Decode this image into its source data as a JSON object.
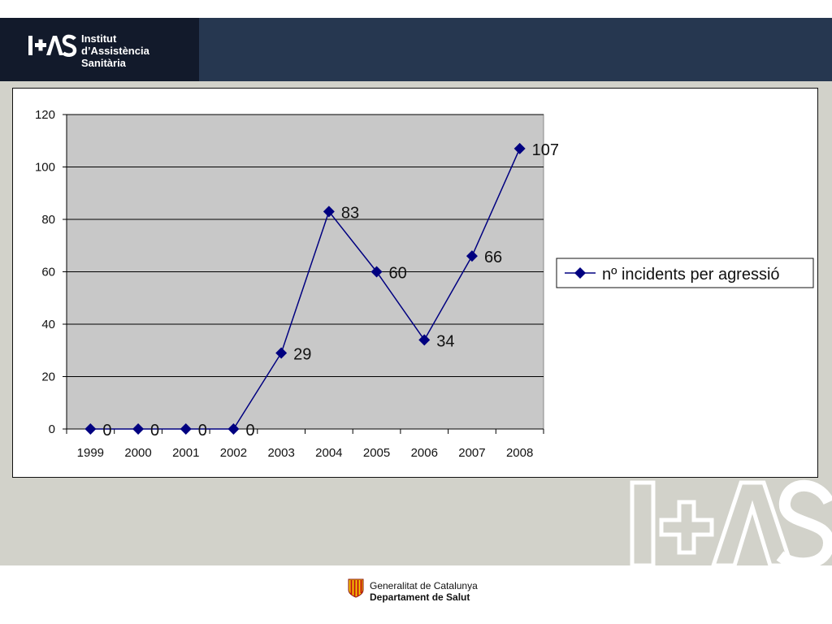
{
  "header": {
    "logo_mark": "IAS",
    "logo_lines": [
      "Institut",
      "d’Assistència",
      "Sanitària"
    ]
  },
  "footer": {
    "line1": "Generalitat de Catalunya",
    "line2": "Departament de Salut"
  },
  "watermark": {
    "icon": "ias-watermark-logo"
  },
  "colors": {
    "header": "#263750",
    "header_logo_box": "#121a2b",
    "slide_bg": "#d2d2ca",
    "plot_bg": "#c8c8c8",
    "series": "#000080"
  },
  "chart_data": {
    "type": "line",
    "title": "",
    "xlabel": "",
    "ylabel": "",
    "categories": [
      "1999",
      "2000",
      "2001",
      "2002",
      "2003",
      "2004",
      "2005",
      "2006",
      "2007",
      "2008"
    ],
    "series": [
      {
        "name": "nº incidents per agressió",
        "values": [
          0,
          0,
          0,
          0,
          29,
          83,
          60,
          34,
          66,
          107
        ],
        "marker": "diamond"
      }
    ],
    "ylim": [
      0,
      120
    ],
    "yticks": [
      0,
      20,
      40,
      60,
      80,
      100,
      120
    ],
    "grid": true,
    "data_labels": true,
    "legend_position": "right"
  }
}
